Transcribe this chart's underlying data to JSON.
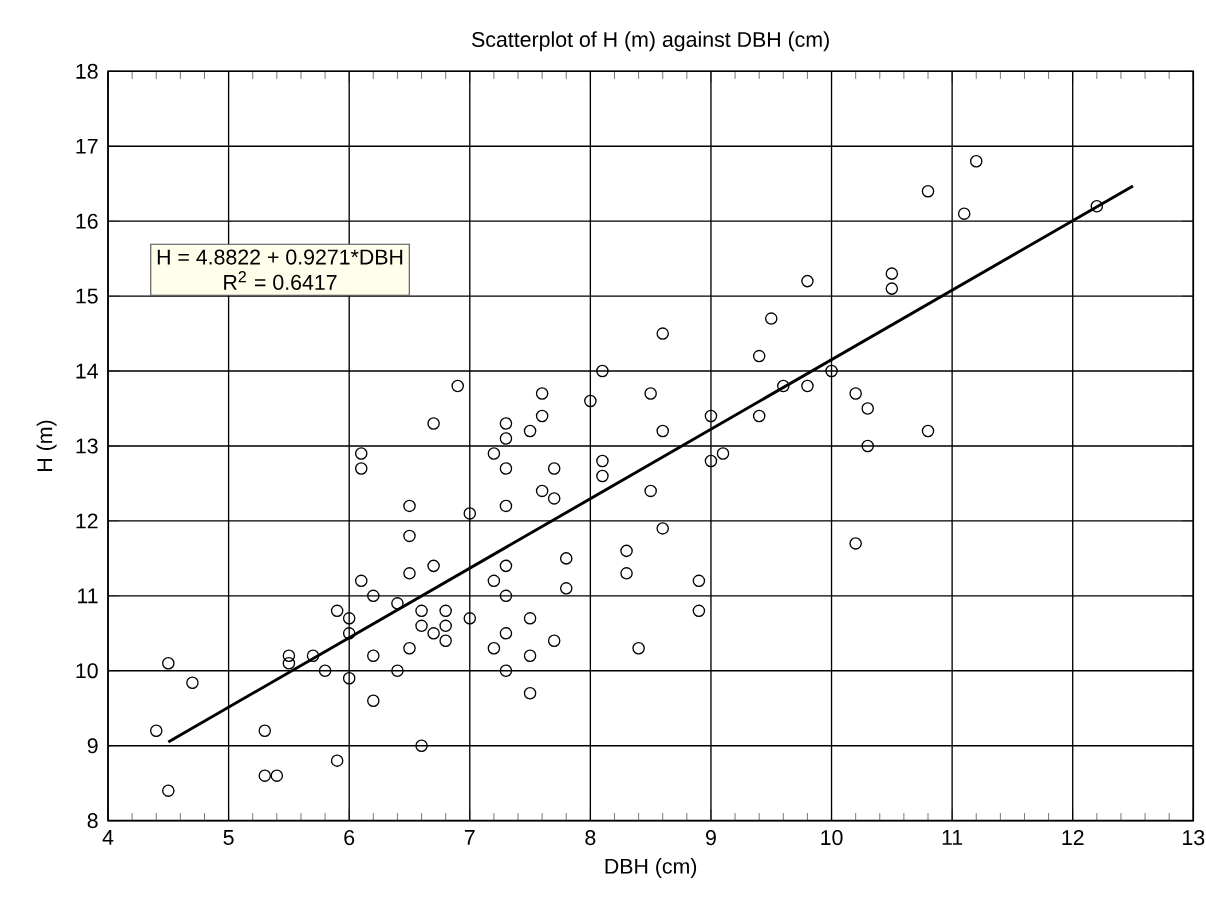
{
  "chart_data": {
    "type": "scatter",
    "title": "Scatterplot of H (m) against DBH (cm)",
    "xlabel": "DBH (cm)",
    "ylabel": "H (m)",
    "xlim": [
      4,
      13
    ],
    "ylim": [
      8,
      18
    ],
    "xticks": [
      4,
      5,
      6,
      7,
      8,
      9,
      10,
      11,
      12,
      13
    ],
    "yticks": [
      8,
      9,
      10,
      11,
      12,
      13,
      14,
      15,
      16,
      17,
      18
    ],
    "grid": true,
    "marker": "circle",
    "annotations": [
      "H = 4.8822 + 0.9271*DBH",
      "R$^{2}$ = 0.6417"
    ],
    "series": [
      {
        "color": "#000000",
        "x": [
          4.4,
          4.5,
          4.5,
          4.7,
          5.3,
          5.3,
          5.4,
          5.5,
          5.5,
          5.7,
          5.8,
          5.9,
          5.9,
          6.0,
          6.0,
          6.0,
          6.1,
          6.2,
          6.2,
          6.2,
          6.4,
          6.4,
          6.5,
          6.5,
          6.5,
          6.5,
          6.6,
          6.6,
          6.6,
          6.7,
          6.7,
          6.8,
          6.8,
          6.8,
          7.0,
          7.0,
          7.2,
          7.2,
          7.3,
          7.3,
          7.3,
          7.3,
          7.3,
          7.5,
          7.5,
          7.5,
          7.7,
          8.6,
          7.8,
          8.3,
          8.3,
          7.8,
          8.9,
          8.9,
          8.4,
          10.2,
          9.8,
          10.5,
          10.5,
          9.5,
          8.6,
          9.4,
          8.1,
          10.0,
          9.6,
          9.8,
          10.2,
          10.3,
          7.6,
          7.6,
          7.5,
          8.0,
          8.5,
          9.0,
          9.4,
          8.6,
          10.3,
          9.0,
          9.1,
          8.1,
          8.1,
          7.7,
          7.6,
          7.7,
          8.5,
          11.2,
          10.8,
          11.1,
          12.2,
          10.8,
          6.9,
          6.7,
          7.3,
          7.3,
          7.2,
          7.3,
          6.1,
          6.1
        ],
        "values": [
          9.2,
          8.4,
          10.1,
          9.84,
          9.2,
          8.6,
          8.6,
          10.2,
          10.1,
          10.2,
          10.0,
          10.8,
          8.8,
          10.7,
          10.5,
          9.9,
          11.2,
          11.0,
          10.2,
          9.6,
          10.9,
          10.0,
          12.2,
          11.8,
          11.3,
          10.3,
          10.8,
          10.6,
          9.0,
          11.4,
          10.5,
          10.8,
          10.6,
          10.4,
          12.1,
          10.7,
          11.2,
          10.3,
          11.4,
          11.0,
          10.5,
          10.0,
          12.2,
          10.7,
          10.2,
          9.7,
          10.4,
          11.9,
          11.5,
          11.6,
          11.3,
          11.1,
          11.2,
          10.8,
          10.3,
          11.7,
          15.2,
          15.3,
          15.1,
          14.7,
          14.5,
          14.2,
          14.0,
          14.0,
          13.8,
          13.8,
          13.7,
          13.5,
          13.7,
          13.4,
          13.2,
          13.6,
          13.7,
          13.4,
          13.4,
          13.2,
          13.0,
          12.8,
          12.9,
          12.8,
          12.6,
          12.7,
          12.4,
          12.3,
          12.4,
          16.8,
          16.4,
          16.1,
          16.2,
          13.2,
          13.8,
          13.3,
          13.3,
          13.1,
          12.9,
          12.7,
          12.9,
          12.7
        ]
      },
      {
        "type": "line",
        "marker": "none",
        "color": "#000000",
        "x": [
          4.5,
          12.5
        ],
        "values": [
          9.05,
          16.47
        ]
      }
    ]
  }
}
